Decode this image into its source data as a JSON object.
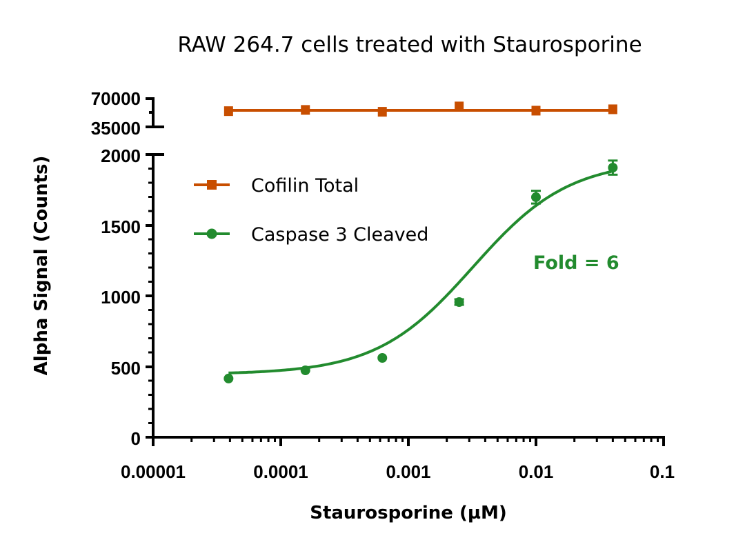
{
  "chart_data": {
    "type": "line",
    "title": "RAW 264.7 cells treated with Staurosporine",
    "xlabel": "Staurosporine (µM)",
    "ylabel": "Alpha Signal (Counts)",
    "xscale": "log",
    "xlim": [
      1e-05,
      0.1
    ],
    "x_ticks": [
      "0.00001",
      "0.0001",
      "0.001",
      "0.01",
      "0.1"
    ],
    "y_axis_broken": true,
    "ylim_lower": [
      0,
      2000
    ],
    "y_ticks_lower": [
      "0",
      "500",
      "1000",
      "1500",
      "2000"
    ],
    "ylim_upper": [
      35000,
      70000
    ],
    "y_ticks_upper": [
      "35000",
      "70000"
    ],
    "grid": false,
    "legend_position": "upper-left inside",
    "x": [
      3.9e-05,
      0.000156,
      0.000625,
      0.0025,
      0.01,
      0.04
    ],
    "series": [
      {
        "name": "Cofilin Total",
        "color": "#C84E00",
        "marker": "square",
        "axis_segment": "upper",
        "values": [
          54500,
          56000,
          53700,
          60300,
          55100,
          56800
        ]
      },
      {
        "name": "Caspase 3 Cleaved",
        "color": "#228B2E",
        "marker": "circle",
        "axis_segment": "lower",
        "values": [
          415,
          473,
          561,
          956,
          1698,
          1907
        ],
        "error_bars": [
          0,
          0,
          0,
          20,
          45,
          50
        ],
        "fit": "sigmoidal dose-response"
      }
    ],
    "annotations": [
      {
        "text": "Fold = 6",
        "color": "#228B2E"
      }
    ]
  }
}
